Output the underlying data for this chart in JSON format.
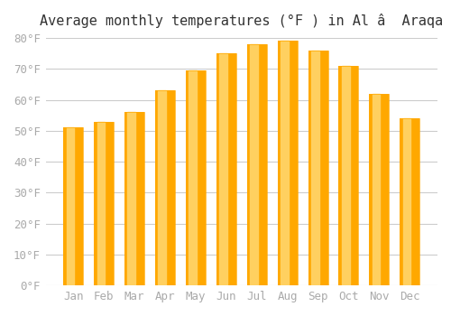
{
  "title": "Average monthly temperatures (°F ) in Al â  Araqa",
  "months": [
    "Jan",
    "Feb",
    "Mar",
    "Apr",
    "May",
    "Jun",
    "Jul",
    "Aug",
    "Sep",
    "Oct",
    "Nov",
    "Dec"
  ],
  "values": [
    51,
    53,
    56,
    63,
    69.5,
    75,
    78,
    79,
    76,
    71,
    62,
    54
  ],
  "bar_color_top": "#FFA800",
  "bar_color_bottom": "#FFD060",
  "ylim": [
    0,
    80
  ],
  "yticks": [
    0,
    10,
    20,
    30,
    40,
    50,
    60,
    70,
    80
  ],
  "ytick_labels": [
    "0°F",
    "10°F",
    "20°F",
    "30°F",
    "40°F",
    "50°F",
    "60°F",
    "70°F",
    "80°F"
  ],
  "background_color": "#ffffff",
  "grid_color": "#cccccc",
  "title_fontsize": 11,
  "tick_fontsize": 9,
  "font_color": "#aaaaaa"
}
